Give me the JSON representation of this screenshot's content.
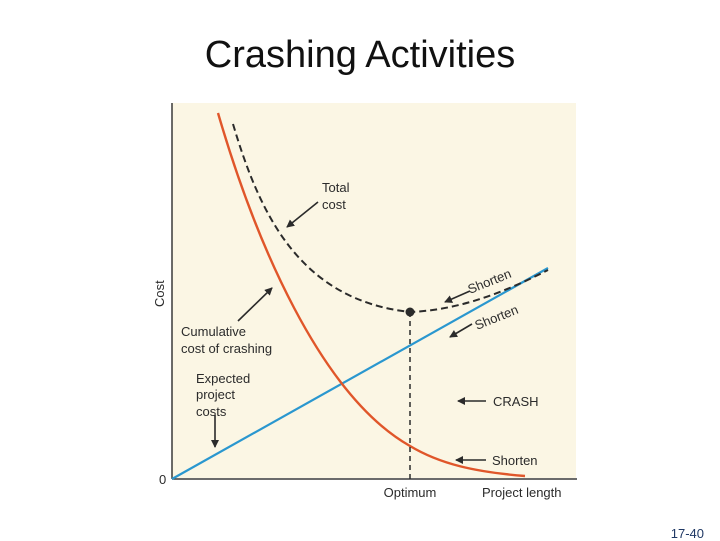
{
  "slide": {
    "title": "Crashing Activities",
    "page_number": "17-40"
  },
  "figure": {
    "background_color": "#fbf6e4",
    "axis_color": "#3a3a3a",
    "y_axis_label": "Cost",
    "origin_label": "0",
    "x_axis_labels": {
      "optimum": "Optimum",
      "project_length": "Project length"
    },
    "annotations": {
      "total_cost": [
        "Total",
        "cost"
      ],
      "cumulative_crashing": [
        "Cumulative",
        "cost of crashing"
      ],
      "expected_project": [
        "Expected",
        "project",
        "costs"
      ],
      "crash": "CRASH",
      "shorten_total": "Shorten",
      "shorten_expected": "Shorten",
      "shorten_crashing": "Shorten"
    },
    "curves": {
      "total_cost": {
        "color": "#2b2b2b",
        "style": "dashed"
      },
      "crashing_cost": {
        "color": "#e0562a",
        "style": "solid"
      },
      "expected_cost": {
        "color": "#2a97cf",
        "style": "solid"
      }
    },
    "optimum_marker": {
      "color": "#2b2b2b",
      "line_style": "dashed"
    }
  }
}
